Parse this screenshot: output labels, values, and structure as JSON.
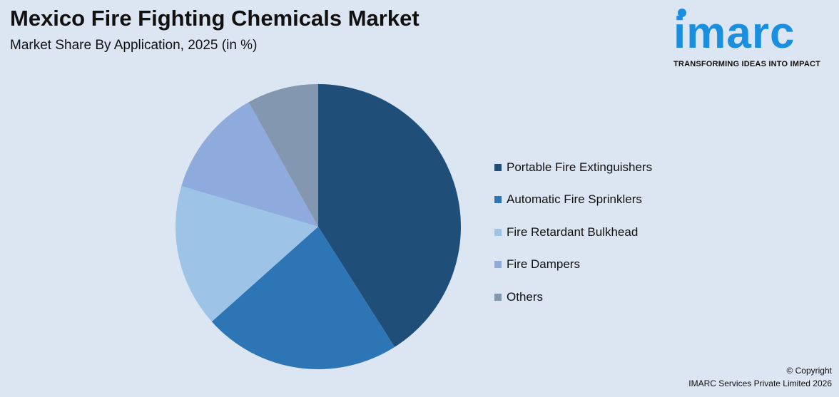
{
  "header": {
    "title": "Mexico Fire Fighting Chemicals Market",
    "subtitle": "Market Share By Application, 2025 (in %)"
  },
  "logo": {
    "text": "imarc",
    "tagline": "TRANSFORMING IDEAS INTO IMPACT"
  },
  "chart_data": {
    "type": "pie",
    "title": "Mexico Fire Fighting Chemicals Market",
    "subtitle": "Market Share By Application, 2025 (in %)",
    "categories": [
      "Portable Fire Extinguishers",
      "Automatic Fire Sprinklers",
      "Fire Retardant Bulkhead",
      "Fire Dampers",
      "Others"
    ],
    "values": [
      41,
      22.4,
      16.2,
      12.3,
      8.1
    ],
    "colors": [
      "#1f4e79",
      "#2e75b6",
      "#9dc3e6",
      "#8faadc",
      "#8497b0"
    ],
    "legend": "right"
  },
  "footer": {
    "copyright": "© Copyright",
    "company": "IMARC Services Private Limited 2026"
  }
}
